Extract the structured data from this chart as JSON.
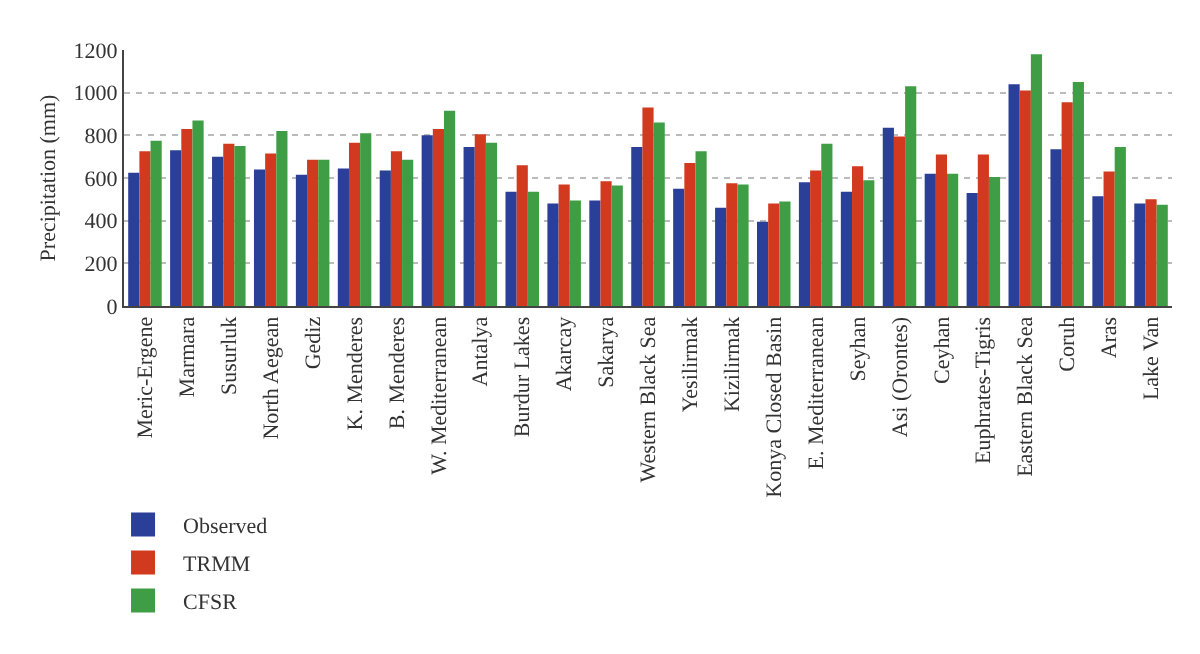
{
  "chart_data": {
    "type": "bar",
    "ylabel": "Precipitation (mm)",
    "categories": [
      "Meric-Ergene",
      "Marmara",
      "Susurluk",
      "North Aegean",
      "Gediz",
      "K. Menderes",
      "B. Menderes",
      "W. Mediterranean",
      "Antalya",
      "Burdur Lakes",
      "Akarcay",
      "Sakarya",
      "Western Black Sea",
      "Yesilirmak",
      "Kizilirmak",
      "Konya Closed Basin",
      "E. Mediterranean",
      "Seyhan",
      "Asi (Orontes)",
      "Ceyhan",
      "Euphrates-Tigris",
      "Eastern Black Sea",
      "Coruh",
      "Aras",
      "Lake Van"
    ],
    "series": [
      {
        "name": "Observed",
        "color": "#2a3f98",
        "values": [
          625,
          730,
          700,
          640,
          615,
          645,
          635,
          800,
          745,
          535,
          480,
          495,
          745,
          550,
          460,
          395,
          580,
          535,
          835,
          620,
          530,
          1040,
          735,
          515,
          480
        ]
      },
      {
        "name": "TRMM",
        "color": "#d13a1e",
        "values": [
          725,
          830,
          760,
          715,
          685,
          765,
          725,
          830,
          805,
          660,
          570,
          585,
          930,
          670,
          575,
          480,
          635,
          655,
          795,
          710,
          710,
          1010,
          955,
          630,
          500
        ]
      },
      {
        "name": "CFSR",
        "color": "#3f9e45",
        "values": [
          775,
          870,
          750,
          820,
          685,
          810,
          685,
          915,
          765,
          535,
          495,
          565,
          860,
          725,
          570,
          490,
          760,
          590,
          1030,
          620,
          605,
          1180,
          1050,
          745,
          475
        ]
      }
    ],
    "ylim": [
      0,
      1200
    ],
    "yticks": [
      0,
      200,
      400,
      600,
      800,
      1000,
      1200
    ],
    "grid": "y",
    "legend": "bottom left"
  }
}
